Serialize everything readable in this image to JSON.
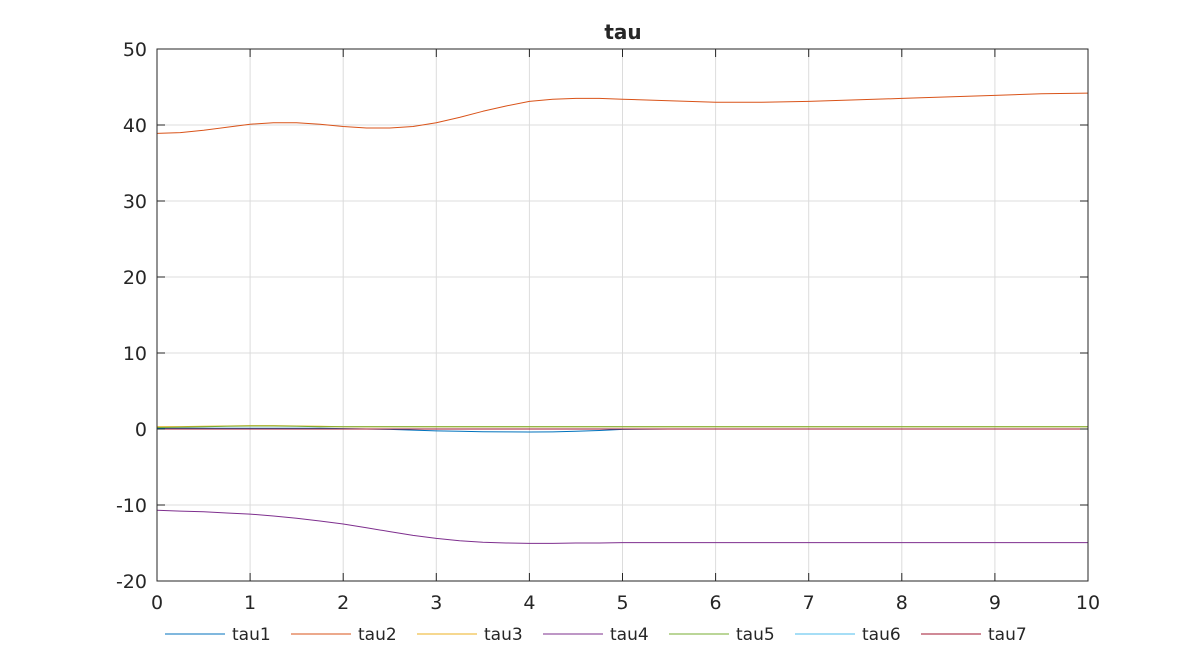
{
  "chart_data": {
    "type": "line",
    "title": "tau",
    "xlabel": "",
    "ylabel": "",
    "xlim": [
      0,
      10
    ],
    "ylim": [
      -20,
      50
    ],
    "xticks": [
      0,
      1,
      2,
      3,
      4,
      5,
      6,
      7,
      8,
      9,
      10
    ],
    "yticks": [
      -20,
      -10,
      0,
      10,
      20,
      30,
      40,
      50
    ],
    "xtick_labels": [
      "0",
      "1",
      "2",
      "3",
      "4",
      "5",
      "6",
      "7",
      "8",
      "9",
      "10"
    ],
    "ytick_labels": [
      "-20",
      "-10",
      "0",
      "10",
      "20",
      "30",
      "40",
      "50"
    ],
    "grid": true,
    "legend_position": "bottom, horizontal, outside plot",
    "x": [
      0,
      0.25,
      0.5,
      0.75,
      1,
      1.25,
      1.5,
      1.75,
      2,
      2.25,
      2.5,
      2.75,
      3,
      3.25,
      3.5,
      3.75,
      4,
      4.25,
      4.5,
      4.75,
      5,
      5.5,
      6,
      6.5,
      7,
      7.5,
      8,
      8.5,
      9,
      9.5,
      10
    ],
    "series": [
      {
        "name": "tau1",
        "color": "#0072BD",
        "values": [
          0.1,
          0.1,
          0.1,
          0.1,
          0.1,
          0.1,
          0.1,
          0.1,
          0.05,
          0.0,
          -0.05,
          -0.15,
          -0.25,
          -0.3,
          -0.35,
          -0.38,
          -0.4,
          -0.38,
          -0.3,
          -0.2,
          -0.05,
          0,
          0,
          0,
          0,
          0,
          0,
          0,
          0,
          0,
          0
        ]
      },
      {
        "name": "tau2",
        "color": "#D95319",
        "values": [
          38.9,
          39.0,
          39.3,
          39.7,
          40.1,
          40.3,
          40.3,
          40.1,
          39.8,
          39.6,
          39.6,
          39.8,
          40.3,
          41.0,
          41.8,
          42.5,
          43.1,
          43.4,
          43.5,
          43.5,
          43.4,
          43.2,
          43.0,
          43.0,
          43.1,
          43.3,
          43.5,
          43.7,
          43.9,
          44.1,
          44.2
        ]
      },
      {
        "name": "tau3",
        "color": "#EDB120",
        "values": [
          0.3,
          0.32,
          0.35,
          0.4,
          0.45,
          0.45,
          0.4,
          0.35,
          0.3,
          0.3,
          0.3,
          0.3,
          0.3,
          0.3,
          0.3,
          0.3,
          0.3,
          0.3,
          0.3,
          0.3,
          0.3,
          0.3,
          0.3,
          0.3,
          0.3,
          0.3,
          0.3,
          0.3,
          0.3,
          0.3,
          0.3
        ]
      },
      {
        "name": "tau4",
        "color": "#7E2F8E",
        "values": [
          -10.7,
          -10.8,
          -10.9,
          -11.05,
          -11.2,
          -11.45,
          -11.75,
          -12.1,
          -12.5,
          -13.0,
          -13.5,
          -14.0,
          -14.4,
          -14.7,
          -14.9,
          -15.0,
          -15.05,
          -15.05,
          -15.0,
          -15.0,
          -14.95,
          -14.95,
          -14.95,
          -14.95,
          -14.95,
          -14.95,
          -14.95,
          -14.95,
          -14.95,
          -14.95,
          -14.95
        ]
      },
      {
        "name": "tau5",
        "color": "#77AC30",
        "values": [
          0.2,
          0.25,
          0.3,
          0.35,
          0.4,
          0.4,
          0.35,
          0.3,
          0.3,
          0.3,
          0.3,
          0.3,
          0.3,
          0.3,
          0.3,
          0.3,
          0.3,
          0.3,
          0.3,
          0.3,
          0.3,
          0.3,
          0.3,
          0.3,
          0.3,
          0.3,
          0.3,
          0.3,
          0.3,
          0.3,
          0.3
        ]
      },
      {
        "name": "tau6",
        "color": "#4DBEEE",
        "values": [
          0,
          0,
          0,
          0,
          0,
          0,
          0,
          0,
          0,
          0,
          0,
          0,
          0,
          0,
          0,
          0,
          0,
          0,
          0,
          0,
          0,
          0,
          0,
          0,
          0,
          0,
          0,
          0,
          0,
          0,
          0
        ]
      },
      {
        "name": "tau7",
        "color": "#A2142F",
        "values": [
          0,
          0,
          0,
          0,
          0,
          0,
          0,
          0,
          0,
          0,
          0,
          0,
          0,
          0,
          0,
          0,
          0,
          0,
          0,
          0,
          0,
          0,
          0,
          0,
          0,
          0,
          0,
          0,
          0,
          0,
          0
        ]
      }
    ]
  }
}
